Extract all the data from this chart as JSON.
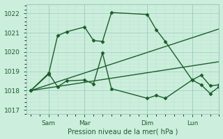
{
  "xlabel": "Pression niveau de la mer( hPa )",
  "ylim": [
    1016.8,
    1022.5
  ],
  "yticks": [
    1017,
    1018,
    1019,
    1020,
    1021,
    1022
  ],
  "bg_color": "#cceedd",
  "grid_major_color": "#99ccbb",
  "grid_minor_color": "#bbddcc",
  "line_color": "#1a5e2a",
  "xtick_labels": [
    "Sam",
    "Mar",
    "Dim",
    "Lun"
  ],
  "xtick_positions": [
    2,
    6,
    13,
    18
  ],
  "xlim": [
    -0.5,
    21
  ],
  "series": [
    {
      "x": [
        0,
        2,
        3,
        4,
        6,
        7,
        8,
        9,
        13,
        14,
        15,
        18,
        19,
        20,
        21
      ],
      "y": [
        1018.0,
        1018.85,
        1020.85,
        1021.05,
        1021.3,
        1020.6,
        1020.55,
        1022.05,
        1021.95,
        1021.15,
        1020.55,
        1018.55,
        1018.8,
        1018.25,
        1018.3
      ],
      "marker": "D",
      "markersize": 2.5,
      "linestyle": "-",
      "linewidth": 1.0
    },
    {
      "x": [
        0,
        2,
        3,
        4,
        6,
        7,
        8,
        9,
        13,
        14,
        15,
        18,
        19,
        20,
        21
      ],
      "y": [
        1018.0,
        1018.9,
        1018.2,
        1018.5,
        1018.55,
        1018.35,
        1019.95,
        1018.1,
        1017.6,
        1017.75,
        1017.6,
        1018.55,
        1018.3,
        1017.85,
        1018.2
      ],
      "marker": "D",
      "markersize": 2.5,
      "linestyle": "-",
      "linewidth": 1.0
    },
    {
      "x": [
        0,
        21
      ],
      "y": [
        1018.0,
        1021.2
      ],
      "marker": null,
      "markersize": 0,
      "linestyle": "-",
      "linewidth": 1.0
    },
    {
      "x": [
        0,
        21
      ],
      "y": [
        1018.0,
        1019.5
      ],
      "marker": null,
      "markersize": 0,
      "linestyle": "-",
      "linewidth": 1.0
    }
  ]
}
